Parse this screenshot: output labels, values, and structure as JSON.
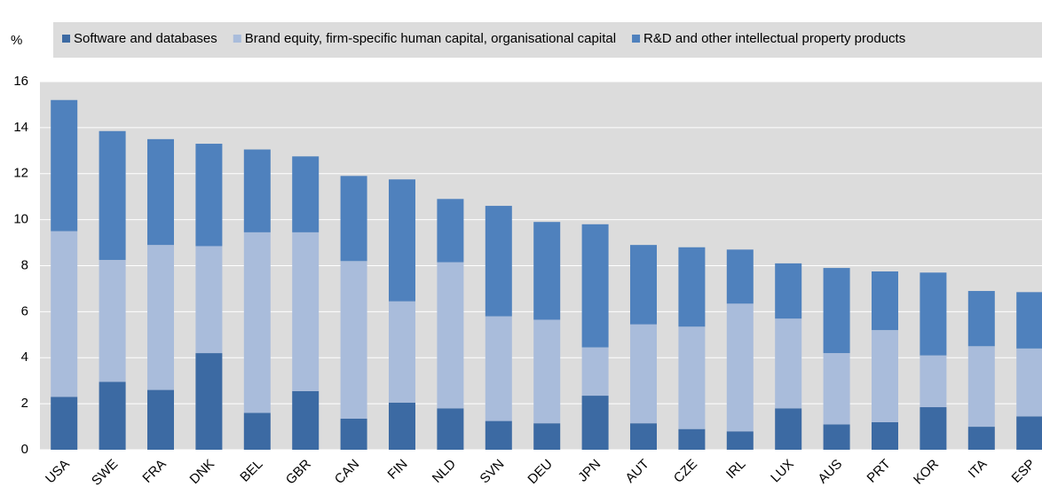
{
  "chart_data": {
    "type": "bar",
    "stacked": true,
    "y_label": "%",
    "categories": [
      "USA",
      "SWE",
      "FRA",
      "DNK",
      "BEL",
      "GBR",
      "CAN",
      "FIN",
      "NLD",
      "SVN",
      "DEU",
      "JPN",
      "AUT",
      "CZE",
      "IRL",
      "LUX",
      "AUS",
      "PRT",
      "KOR",
      "ITA",
      "ESP"
    ],
    "series": [
      {
        "name": "Software and databases",
        "color": "#3c6aa3",
        "values": [
          2.3,
          2.95,
          2.6,
          4.2,
          1.6,
          2.55,
          1.35,
          2.05,
          1.8,
          1.25,
          1.15,
          2.35,
          1.15,
          0.9,
          0.8,
          1.8,
          1.1,
          1.2,
          1.85,
          1.0,
          1.45
        ]
      },
      {
        "name": "Brand equity, firm-specific human capital, organisational capital",
        "color": "#a9bcdb",
        "values": [
          7.2,
          5.3,
          6.3,
          4.65,
          7.85,
          6.9,
          6.85,
          4.4,
          6.35,
          4.55,
          4.5,
          2.1,
          4.3,
          4.45,
          5.55,
          3.9,
          3.1,
          4.0,
          2.25,
          3.5,
          2.95
        ]
      },
      {
        "name": "R&D and other intellectual property products",
        "color": "#4f81bd",
        "values": [
          5.7,
          5.6,
          4.6,
          4.45,
          3.6,
          3.3,
          3.7,
          5.3,
          2.75,
          4.8,
          4.25,
          5.35,
          3.45,
          3.45,
          2.35,
          2.4,
          3.7,
          2.55,
          3.6,
          2.4,
          2.45
        ]
      }
    ],
    "ylim": [
      0,
      16
    ],
    "yticks": [
      0,
      2,
      4,
      6,
      8,
      10,
      12,
      14,
      16
    ],
    "grid": true
  }
}
